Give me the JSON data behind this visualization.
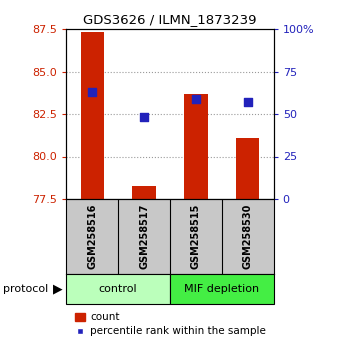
{
  "title": "GDS3626 / ILMN_1873239",
  "samples": [
    "GSM258516",
    "GSM258517",
    "GSM258515",
    "GSM258530"
  ],
  "bar_values": [
    87.3,
    78.25,
    83.7,
    81.1
  ],
  "bar_base": 77.5,
  "percentile_values": [
    63,
    48,
    59,
    57
  ],
  "ylim_left": [
    77.5,
    87.5
  ],
  "ylim_right": [
    0,
    100
  ],
  "yticks_left": [
    77.5,
    80.0,
    82.5,
    85.0,
    87.5
  ],
  "yticks_right": [
    0,
    25,
    50,
    75,
    100
  ],
  "ytick_labels_right": [
    "0",
    "25",
    "50",
    "75",
    "100%"
  ],
  "bar_color": "#cc2200",
  "dot_color": "#2222bb",
  "bar_width": 0.45,
  "dot_size": 35,
  "grid_color": "#999999",
  "bg_plot": "#ffffff",
  "bg_sample_label": "#c8c8c8",
  "group1_label": "control",
  "group1_color": "#bbffbb",
  "group2_label": "MIF depletion",
  "group2_color": "#44ee44",
  "legend_count_label": "count",
  "legend_pct_label": "percentile rank within the sample",
  "protocol_label": "protocol",
  "left_tick_color": "#cc2200",
  "right_tick_color": "#2222bb"
}
